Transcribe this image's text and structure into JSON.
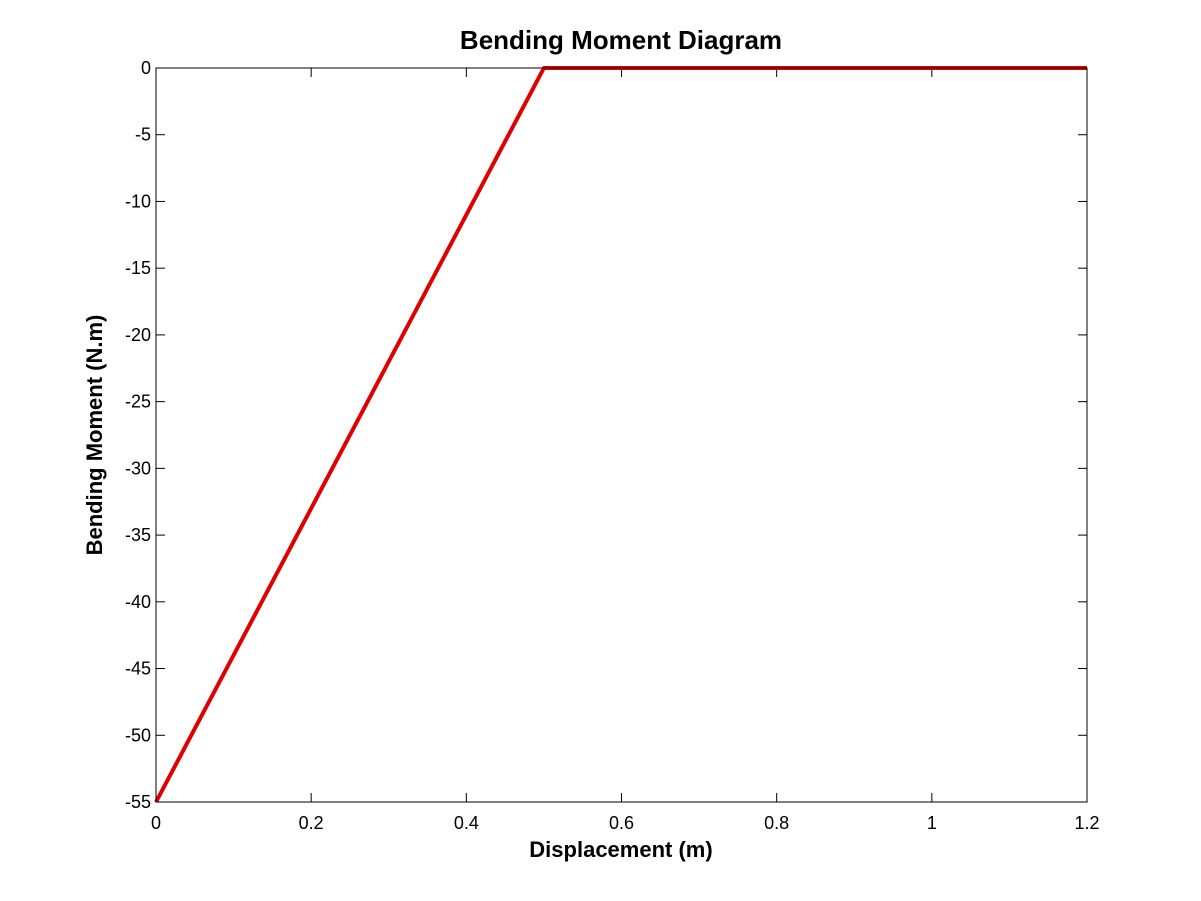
{
  "chart_data": {
    "type": "line",
    "title": "Bending Moment Diagram",
    "xlabel": "Displacement (m)",
    "ylabel": "Bending Moment (N.m)",
    "xlim": [
      0,
      1.2
    ],
    "ylim": [
      -55,
      0
    ],
    "grid": false,
    "x_ticks": [
      0,
      0.2,
      0.4,
      0.6,
      0.8,
      1,
      1.2
    ],
    "x_tick_labels": [
      "0",
      "0.2",
      "0.4",
      "0.6",
      "0.8",
      "1",
      "1.2"
    ],
    "y_ticks": [
      0,
      -5,
      -10,
      -15,
      -20,
      -25,
      -30,
      -35,
      -40,
      -45,
      -50,
      -55
    ],
    "y_tick_labels": [
      "0",
      "-5",
      "-10",
      "-15",
      "-20",
      "-25",
      "-30",
      "-35",
      "-40",
      "-45",
      "-50",
      "-55"
    ],
    "series": [
      {
        "color": "#e00000",
        "x": [
          0,
          0.5,
          1.2
        ],
        "y": [
          -55,
          0,
          0
        ]
      }
    ]
  }
}
